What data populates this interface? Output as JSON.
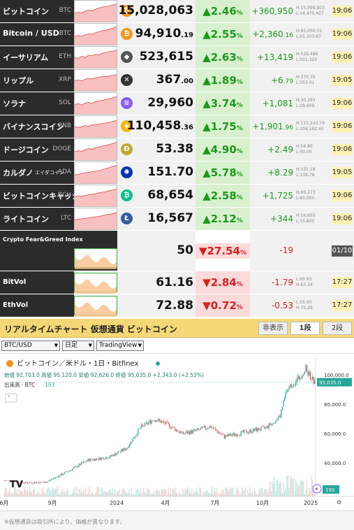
{
  "rows": [
    {
      "jp": "ビットコイン",
      "sym": "BTC",
      "coin": "₿",
      "coin_color": "#f7931a",
      "price": "15,028,063",
      "price_dec": "",
      "pct": "2.46",
      "chg": "+360,950",
      "h": "H:15,099,803",
      "l": "L:14,475,427",
      "time": "19:06",
      "dir": "up",
      "spark": [
        0.6,
        0.55,
        0.58,
        0.5,
        0.45,
        0.48,
        0.4,
        0.35,
        0.3,
        0.28,
        0.25,
        0.2,
        0.15
      ]
    },
    {
      "jp": "Bitcoin / USD",
      "sym": "BTC",
      "coin": "₿",
      "coin_color": "#f7931a",
      "price": "94,910",
      "price_dec": ".19",
      "pct": "2.55",
      "chg": "+2,360",
      "chg_dec": ".16",
      "h": "H:95,000.55",
      "l": "L:91,203.87",
      "time": "19:06",
      "dir": "up",
      "spark": [
        0.6,
        0.55,
        0.6,
        0.52,
        0.48,
        0.5,
        0.42,
        0.38,
        0.32,
        0.3,
        0.26,
        0.2,
        0.15
      ]
    },
    {
      "jp": "イーサリアム",
      "sym": "ETH",
      "coin": "◆",
      "coin_color": "#555",
      "price": "523,615",
      "price_dec": "",
      "pct": "2.63",
      "chg": "+13,419",
      "h": "H:528,486",
      "l": "L:501,320",
      "time": "19:06",
      "dir": "up",
      "spark": [
        0.5,
        0.55,
        0.45,
        0.5,
        0.4,
        0.42,
        0.35,
        0.38,
        0.3,
        0.28,
        0.22,
        0.2,
        0.18
      ]
    },
    {
      "jp": "リップル",
      "sym": "XRP",
      "coin": "✕",
      "coin_color": "#333",
      "price": "367",
      "price_dec": ".00",
      "pct": "1.89",
      "chg": "+6",
      "chg_dec": ".79",
      "h": "H:370.39",
      "l": "L:353.01",
      "time": "19:05",
      "dir": "up",
      "spark": [
        0.5,
        0.48,
        0.52,
        0.45,
        0.4,
        0.42,
        0.38,
        0.35,
        0.3,
        0.32,
        0.28,
        0.25,
        0.22
      ]
    },
    {
      "jp": "ソラナ",
      "sym": "SOL",
      "coin": "≡",
      "coin_color": "#8a5cf6",
      "price": "29,960",
      "price_dec": "",
      "pct": "3.74",
      "chg": "+1,081",
      "h": "H:30,193",
      "l": "L:28,609",
      "time": "19:06",
      "dir": "up",
      "spark": [
        0.55,
        0.5,
        0.58,
        0.48,
        0.45,
        0.5,
        0.4,
        0.38,
        0.35,
        0.3,
        0.28,
        0.22,
        0.18
      ]
    },
    {
      "jp": "バイナンスコイン",
      "sym": "BNB",
      "coin": "◈",
      "coin_color": "#f0b90b",
      "price": "110,458",
      "price_dec": ".36",
      "pct": "1.75",
      "chg": "+1,901",
      "chg_dec": ".96",
      "h": "H:113,243.79",
      "l": "L:106,182.45",
      "time": "19:06",
      "dir": "up",
      "spark": [
        0.5,
        0.55,
        0.5,
        0.45,
        0.48,
        0.42,
        0.4,
        0.38,
        0.35,
        0.33,
        0.3,
        0.25,
        0.2
      ]
    },
    {
      "jp": "ドージコイン",
      "sym": "DOGE",
      "coin": "Ð",
      "coin_color": "#c2a633",
      "price": "53.38",
      "price_dec": "",
      "pct": "4.90",
      "chg": "+2.49",
      "h": "H:54.80",
      "l": "L:50.00",
      "time": "19:06",
      "dir": "up",
      "spark": [
        0.6,
        0.55,
        0.58,
        0.5,
        0.45,
        0.48,
        0.4,
        0.38,
        0.32,
        0.3,
        0.25,
        0.2,
        0.15
      ]
    },
    {
      "jp": "カルダノ",
      "jp_small": "エイダコイン",
      "sym": "ADA",
      "coin": "✺",
      "coin_color": "#0033ad",
      "price": "151.70",
      "price_dec": "",
      "pct": "5.78",
      "chg": "+8.29",
      "h": "H:155.18",
      "l": "L:138.78",
      "time": "19:05",
      "dir": "up",
      "spark": [
        0.6,
        0.58,
        0.55,
        0.5,
        0.48,
        0.45,
        0.42,
        0.4,
        0.35,
        0.3,
        0.25,
        0.2,
        0.15
      ]
    },
    {
      "jp": "ビットコインキャッシュ",
      "sym": "BCH",
      "coin": "₿",
      "coin_color": "#0ac18e",
      "price": "68,654",
      "price_dec": "",
      "pct": "2.58",
      "chg": "+1,725",
      "h": "H:69,273",
      "l": "L:65,000",
      "time": "19:06",
      "dir": "up",
      "spark": [
        0.55,
        0.5,
        0.52,
        0.48,
        0.45,
        0.42,
        0.4,
        0.36,
        0.32,
        0.3,
        0.26,
        0.22,
        0.18
      ]
    },
    {
      "jp": "ライトコイン",
      "sym": "LTC",
      "coin": "Ł",
      "coin_color": "#345d9d",
      "price": "16,567",
      "price_dec": "",
      "pct": "2.12",
      "chg": "+344",
      "h": "H:16,859",
      "l": "L:15,800",
      "time": "19:06",
      "dir": "up",
      "spark": [
        0.55,
        0.52,
        0.5,
        0.48,
        0.45,
        0.42,
        0.4,
        0.38,
        0.35,
        0.3,
        0.28,
        0.24,
        0.2
      ]
    }
  ],
  "fear": {
    "label": "Crypto Fear&Greed Index",
    "value": "50",
    "pct": "27.54",
    "chg": "-19",
    "time": "01/10"
  },
  "bitvol": {
    "label": "BitVol",
    "value": "61.16",
    "pct": "2.84",
    "chg": "-1.79",
    "hl": "L:60.93 H:63.34",
    "time": "17:27"
  },
  "ethvol": {
    "label": "EthVol",
    "value": "72.88",
    "pct": "0.72",
    "chg": "-0.53",
    "hl": "L:55.60 H:75.29",
    "time": "17:27"
  },
  "section": {
    "title": "リアルタイムチャート 仮想通貨 ビットコイン",
    "btn_hide": "非表示",
    "btn_1": "1段",
    "btn_2": "2段"
  },
  "controls": {
    "pair": "BTC/USD",
    "interval": "日足",
    "source": "TradingView"
  },
  "chart": {
    "legend_title": "ビットコイン／米ドル・1日・Bitfinex",
    "ohlc": "始値 92,703.0 高値 95,120.0 安値 92,626.0 終値 95,035.0 +2,343.0 (+2.53%)",
    "volume_label": "出来高 · BTC",
    "volume_value": "193",
    "last_price": "95,035.0",
    "volume_badge": "193",
    "y_ticks": [
      "100,000.0",
      "80,000.0",
      "60,000.0",
      "40,000.0"
    ],
    "x_ticks": [
      "6月",
      "9月",
      "2024",
      "4月",
      "7月",
      "10月",
      "2025"
    ],
    "logo": "TV"
  },
  "footer": "※仮想通貨は取引所により、価格が異なります。",
  "colors": {
    "up": "#1a9a1a",
    "down": "#d82020",
    "candle_up": "#26a69a",
    "candle_dn": "#ef5350",
    "accent": "#f4d776"
  }
}
